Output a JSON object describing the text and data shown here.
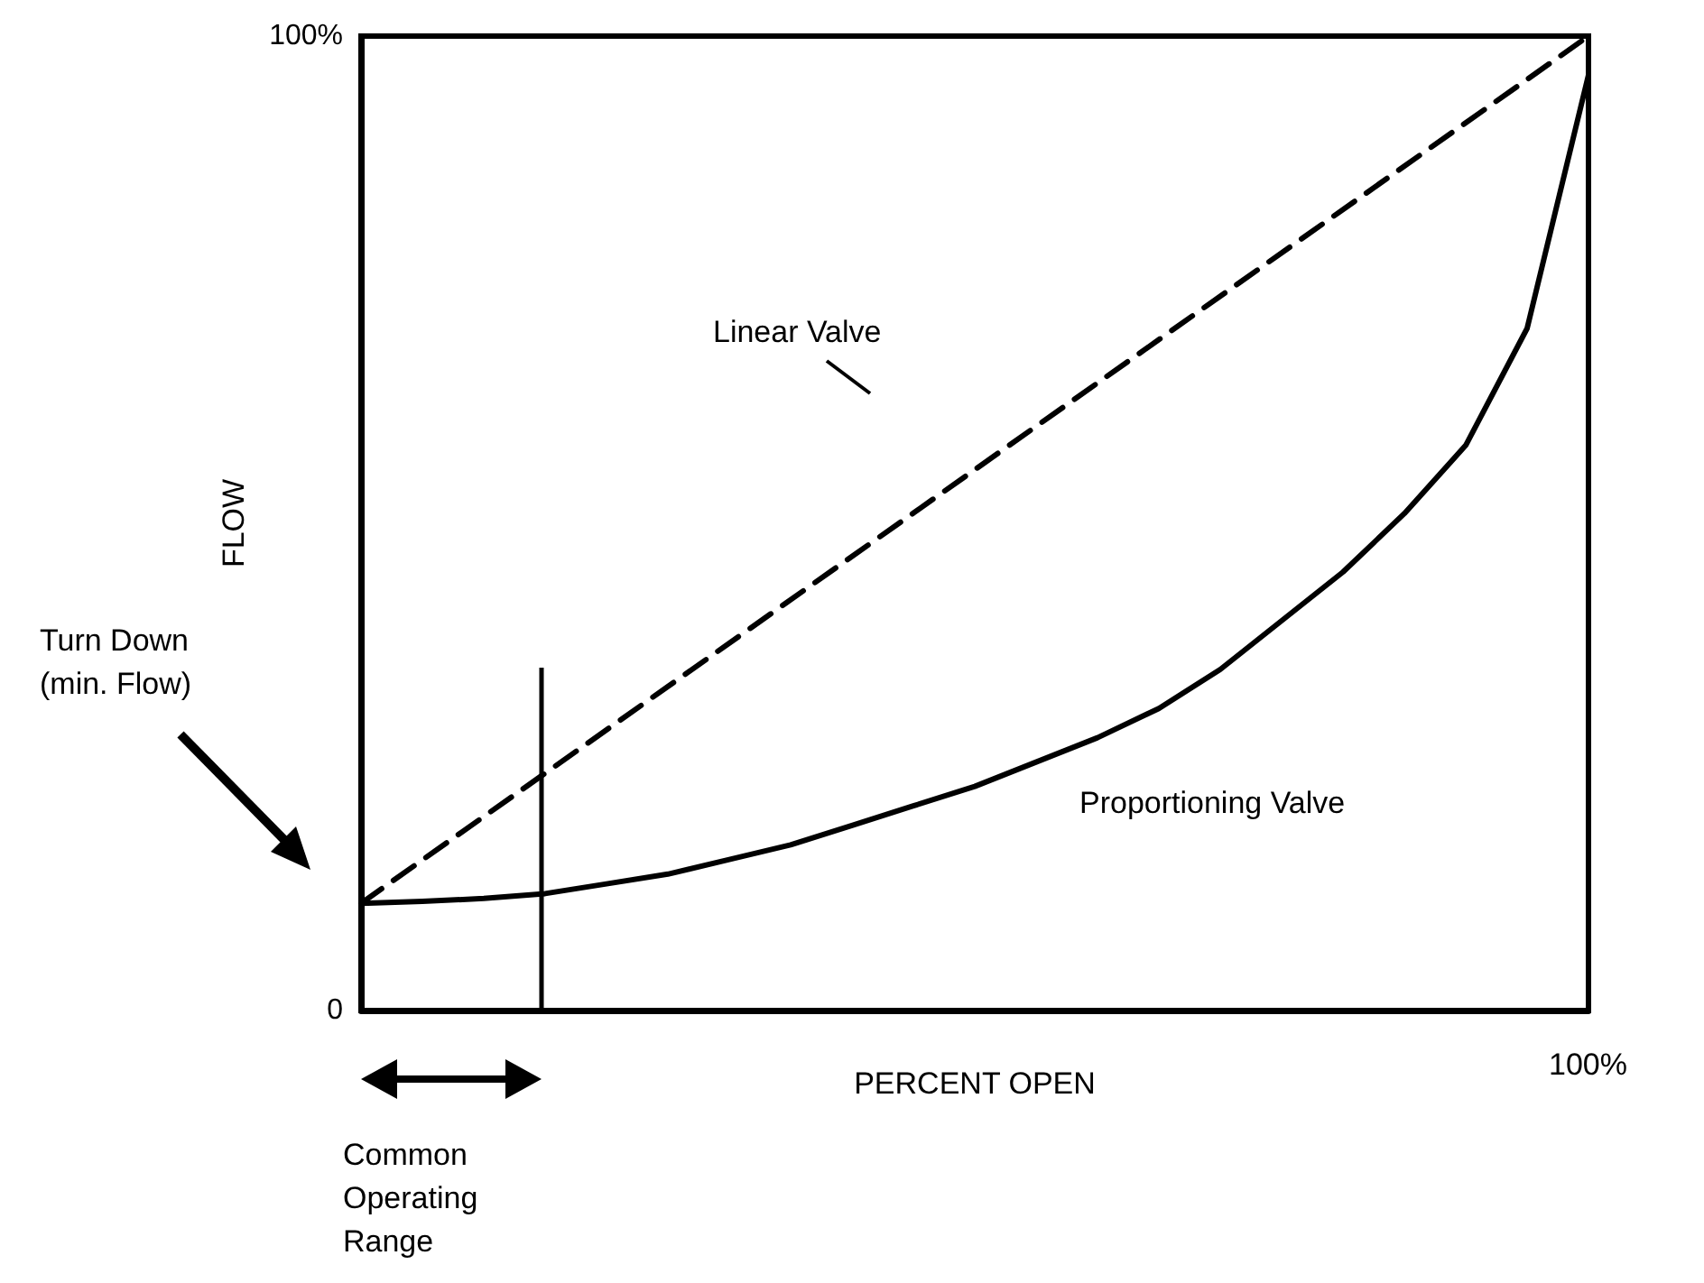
{
  "chart_data": {
    "type": "line",
    "xlabel": "PERCENT OPEN",
    "ylabel": "FLOW",
    "categories": [
      null,
      null,
      null,
      null,
      null,
      null,
      null,
      null,
      null,
      null,
      null,
      null,
      null,
      null,
      null,
      null,
      null,
      null,
      null,
      null,
      null
    ],
    "ylim": [
      0,
      100
    ],
    "yticks": [
      {
        "value": 0,
        "label": "0"
      },
      {
        "value": 100,
        "label": "100%"
      }
    ],
    "series": [
      {
        "color": "#000000",
        "line_style": "dashed",
        "values": [
          11,
          null,
          null,
          null,
          null,
          null,
          null,
          null,
          null,
          null,
          null,
          null,
          null,
          null,
          null,
          null,
          null,
          null,
          null,
          null,
          100
        ]
      },
      {
        "color": "#000000",
        "line_style": "solid",
        "values": [
          11,
          11.2,
          11.5,
          12,
          13,
          14,
          15.5,
          17,
          19,
          21,
          23,
          25.5,
          28,
          31,
          35,
          40,
          45,
          51,
          58,
          70,
          96
        ]
      }
    ],
    "annotations": [
      "Linear Valve",
      "Proportioning Valve",
      "Turn Down\n(min. Flow)",
      "Common\nOperating\nRange",
      "100%"
    ],
    "marker": "none",
    "grid": false
  }
}
